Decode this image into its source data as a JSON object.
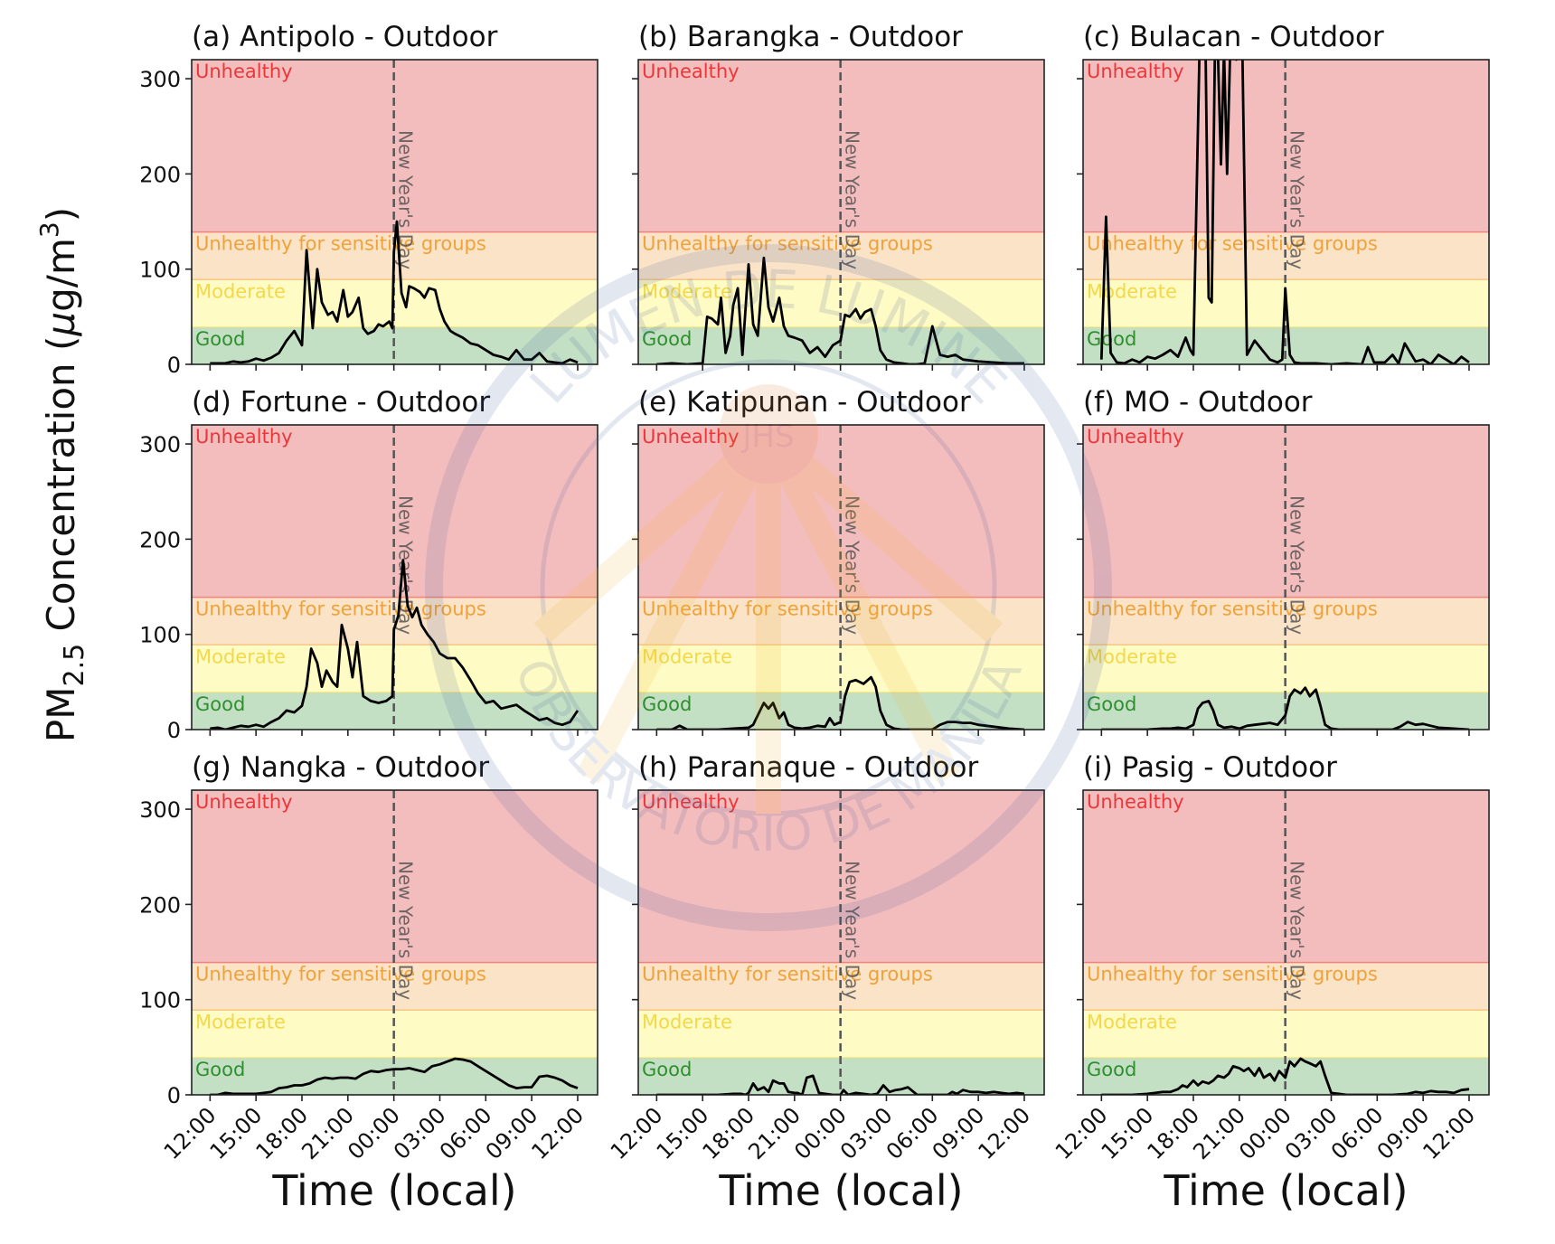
{
  "watermark": {
    "text_top": "LUMEN DE LUMINE",
    "text_bottom": "OBSERVATORIO DE MANILA",
    "monogram": "JHS"
  },
  "colors": {
    "unhealthy_band": "#f4bdbd",
    "usg_band": "#fae3c7",
    "moderate_band": "#fefbc4",
    "good_band": "#c4e0c4",
    "unhealthy_text": "#e8383b",
    "usg_text": "#f0a23a",
    "moderate_text": "#f3d84a",
    "good_text": "#2f8f2f",
    "line": "#000000",
    "nyd_line": "#555555"
  },
  "chart_data": {
    "type": "line",
    "ylabel_main": "PM",
    "ylabel_sub": "2.5",
    "ylabel_rest": " Concentration (",
    "ylabel_mu": "μ",
    "ylabel_unit": "g/m",
    "ylabel_sup": "3",
    "ylabel_close": ")",
    "xlabel": "Time (local)",
    "x_hours_range": [
      -1.2,
      25.3
    ],
    "ylim": [
      0,
      320
    ],
    "yticks": [
      0,
      100,
      200,
      300
    ],
    "ytick_labels": [
      "0",
      "100",
      "200",
      "300"
    ],
    "xticks_hours": [
      0,
      3,
      6,
      9,
      12,
      15,
      18,
      21,
      24
    ],
    "xtick_labels": [
      "12:00",
      "15:00",
      "18:00",
      "21:00",
      "00:00",
      "03:00",
      "06:00",
      "09:00",
      "12:00"
    ],
    "event": {
      "hour": 12,
      "label": "New Year's Day"
    },
    "bands": [
      {
        "name": "Good",
        "from": 0,
        "to": 39
      },
      {
        "name": "Moderate",
        "from": 39,
        "to": 89
      },
      {
        "name": "Unhealthy for sensitive groups",
        "from": 89,
        "to": 139
      },
      {
        "name": "Unhealthy",
        "from": 139,
        "to": 320
      }
    ],
    "panels": [
      {
        "title": "(a) Antipolo - Outdoor",
        "x": [
          0,
          0.5,
          1,
          1.5,
          2,
          2.5,
          3,
          3.5,
          4,
          4.5,
          5,
          5.5,
          6,
          6.3,
          6.7,
          7,
          7.3,
          7.7,
          8,
          8.3,
          8.7,
          9,
          9.3,
          9.7,
          10,
          10.3,
          10.7,
          11,
          11.3,
          11.7,
          11.9,
          12,
          12.2,
          12.5,
          12.8,
          13,
          13.3,
          13.7,
          14,
          14.3,
          14.7,
          15,
          15.3,
          15.7,
          16,
          16.5,
          17,
          17.5,
          18,
          18.5,
          19,
          19.5,
          20,
          20.5,
          21,
          21.5,
          22,
          22.5,
          23,
          23.5,
          24
        ],
        "y": [
          1,
          1,
          1,
          3,
          2,
          3,
          6,
          4,
          7,
          12,
          25,
          35,
          20,
          120,
          38,
          100,
          65,
          52,
          55,
          45,
          78,
          50,
          55,
          70,
          38,
          32,
          35,
          42,
          40,
          45,
          38,
          118,
          150,
          75,
          60,
          82,
          80,
          76,
          70,
          80,
          78,
          58,
          45,
          35,
          32,
          28,
          22,
          20,
          15,
          10,
          8,
          5,
          15,
          5,
          5,
          12,
          3,
          2,
          1,
          5,
          2
        ]
      },
      {
        "title": "(b) Barangka - Outdoor",
        "x": [
          0,
          1,
          2,
          3,
          3.3,
          3.6,
          4,
          4.2,
          4.5,
          4.8,
          5,
          5.3,
          5.6,
          6,
          6.3,
          6.6,
          7,
          7.3,
          7.6,
          8,
          8.3,
          8.6,
          9,
          9.5,
          10,
          10.5,
          11,
          11.5,
          12,
          12.3,
          12.6,
          13,
          13.3,
          13.6,
          14,
          14.3,
          14.6,
          15,
          15.5,
          16,
          16.5,
          17,
          17.5,
          18,
          18.5,
          19,
          19.5,
          20,
          21,
          22,
          23,
          24
        ],
        "y": [
          0,
          1,
          0,
          1,
          50,
          48,
          42,
          70,
          12,
          30,
          62,
          80,
          10,
          105,
          42,
          30,
          112,
          60,
          45,
          70,
          40,
          30,
          28,
          25,
          12,
          18,
          8,
          20,
          25,
          52,
          50,
          58,
          48,
          55,
          58,
          40,
          15,
          5,
          2,
          1,
          0,
          0,
          1,
          40,
          10,
          8,
          10,
          5,
          3,
          2,
          1,
          1
        ]
      },
      {
        "title": "(c) Bulacan - Outdoor",
        "x": [
          0,
          0.3,
          0.6,
          1,
          1.5,
          2,
          2.5,
          3,
          3.5,
          4,
          4.5,
          5,
          5.5,
          5.8,
          6,
          6.4,
          6.8,
          7,
          7.2,
          7.4,
          7.6,
          7.8,
          8,
          8.2,
          8.4,
          8.6,
          8.8,
          9,
          9.2,
          9.5,
          10,
          10.5,
          11,
          11.5,
          11.8,
          12,
          12.3,
          12.6,
          13,
          14,
          15,
          16,
          17,
          17.4,
          17.8,
          18.5,
          19,
          19.4,
          19.8,
          20.5,
          21,
          21.5,
          22,
          22.5,
          23,
          23.5,
          24
        ],
        "y": [
          5,
          155,
          12,
          2,
          1,
          5,
          2,
          8,
          6,
          10,
          15,
          8,
          28,
          15,
          10,
          330,
          330,
          70,
          65,
          320,
          330,
          210,
          330,
          200,
          330,
          330,
          320,
          330,
          330,
          10,
          25,
          15,
          5,
          2,
          5,
          80,
          10,
          2,
          1,
          1,
          0,
          1,
          0,
          18,
          2,
          2,
          10,
          1,
          22,
          3,
          5,
          0,
          10,
          5,
          0,
          8,
          2
        ]
      },
      {
        "title": "(d) Fortune - Outdoor",
        "x": [
          0,
          0.5,
          1,
          1.5,
          2,
          2.5,
          3,
          3.5,
          4,
          4.5,
          5,
          5.5,
          6,
          6.3,
          6.6,
          7,
          7.3,
          7.6,
          8,
          8.3,
          8.6,
          9,
          9.3,
          9.6,
          10,
          10.5,
          11,
          11.5,
          11.9,
          12,
          12.3,
          12.6,
          12.9,
          13.2,
          13.5,
          13.8,
          14.2,
          14.6,
          15,
          15.5,
          16,
          16.5,
          17,
          17.5,
          18,
          18.5,
          19,
          19.5,
          20,
          20.5,
          21,
          21.5,
          22,
          22.5,
          23,
          23.5,
          24
        ],
        "y": [
          1,
          2,
          0,
          2,
          4,
          3,
          5,
          3,
          8,
          12,
          20,
          18,
          25,
          45,
          85,
          70,
          45,
          62,
          50,
          45,
          110,
          85,
          55,
          92,
          35,
          30,
          28,
          30,
          35,
          105,
          120,
          178,
          130,
          118,
          128,
          110,
          100,
          92,
          80,
          75,
          75,
          65,
          52,
          38,
          28,
          30,
          22,
          24,
          26,
          20,
          15,
          10,
          12,
          7,
          5,
          8,
          20
        ]
      },
      {
        "title": "(e) Katipunan - Outdoor",
        "x": [
          0,
          0.5,
          1,
          1.5,
          2,
          2.5,
          3,
          4,
          5,
          6,
          6.3,
          6.6,
          7,
          7.3,
          7.6,
          8,
          8.3,
          8.6,
          9,
          9.5,
          10,
          10.5,
          11,
          11.3,
          11.6,
          12,
          12.3,
          12.6,
          13,
          13.5,
          14,
          14.3,
          14.6,
          15,
          15.5,
          16,
          16.5,
          17,
          17.5,
          18,
          18.5,
          19,
          19.5,
          20,
          20.5,
          21,
          22,
          23,
          24
        ],
        "y": [
          0,
          0,
          0,
          4,
          0,
          0,
          0,
          0,
          1,
          2,
          5,
          15,
          28,
          22,
          28,
          12,
          18,
          5,
          2,
          1,
          2,
          4,
          3,
          12,
          5,
          8,
          35,
          50,
          52,
          48,
          55,
          45,
          20,
          5,
          1,
          0,
          0,
          0,
          0,
          0,
          5,
          8,
          8,
          7,
          7,
          5,
          3,
          1,
          0
        ]
      },
      {
        "title": "(f) MO - Outdoor",
        "x": [
          0,
          1,
          2,
          3,
          4,
          4.5,
          5,
          5.5,
          6,
          6.3,
          6.6,
          7,
          7.3,
          7.6,
          8,
          8.5,
          9,
          9.5,
          10,
          10.5,
          11,
          11.5,
          12,
          12.3,
          12.6,
          13,
          13.3,
          13.6,
          14,
          14.3,
          14.6,
          15,
          15.5,
          16,
          17,
          18,
          19,
          19.5,
          20,
          20.5,
          21,
          21.5,
          22,
          23,
          24
        ],
        "y": [
          0,
          0,
          0,
          0,
          1,
          1,
          2,
          1,
          5,
          22,
          28,
          30,
          20,
          5,
          2,
          3,
          1,
          4,
          5,
          6,
          7,
          5,
          15,
          35,
          42,
          38,
          44,
          35,
          42,
          25,
          5,
          1,
          0,
          0,
          0,
          0,
          0,
          3,
          8,
          5,
          6,
          4,
          2,
          1,
          0
        ]
      },
      {
        "title": "(g) Nangka - Outdoor",
        "x": [
          0,
          0.5,
          1,
          1.5,
          2,
          2.5,
          3,
          3.5,
          4,
          4.5,
          5,
          5.5,
          6,
          6.5,
          7,
          7.5,
          8,
          8.5,
          9,
          9.5,
          10,
          10.5,
          11,
          11.5,
          12,
          12.5,
          13,
          13.5,
          14,
          14.5,
          15,
          15.5,
          16,
          16.5,
          17,
          17.5,
          18,
          18.5,
          19,
          19.5,
          20,
          20.5,
          21,
          21.5,
          22,
          22.5,
          23,
          23.5,
          24
        ],
        "y": [
          0,
          0,
          2,
          1,
          1,
          1,
          1,
          2,
          3,
          7,
          8,
          10,
          10,
          12,
          16,
          18,
          17,
          18,
          18,
          17,
          22,
          25,
          24,
          26,
          27,
          27,
          28,
          26,
          24,
          30,
          32,
          35,
          38,
          37,
          35,
          30,
          25,
          20,
          15,
          10,
          7,
          8,
          8,
          19,
          20,
          18,
          15,
          10,
          7
        ]
      },
      {
        "title": "(h) Paranaque - Outdoor",
        "x": [
          0,
          1,
          2,
          3,
          4,
          5,
          5.5,
          5.8,
          6,
          6.3,
          6.6,
          7,
          7.3,
          7.6,
          8,
          8.3,
          8.6,
          9,
          9.2,
          9.5,
          9.8,
          10.2,
          10.6,
          11,
          11.5,
          12,
          12.2,
          12.5,
          13,
          13.5,
          14,
          14.4,
          14.8,
          15.2,
          15.6,
          16,
          16.4,
          17,
          18,
          19,
          19.3,
          19.6,
          20,
          20.5,
          21,
          21.5,
          22,
          22.5,
          23,
          23.5,
          24
        ],
        "y": [
          0,
          0,
          0,
          0,
          0,
          1,
          1,
          0,
          2,
          12,
          5,
          8,
          3,
          15,
          12,
          12,
          3,
          2,
          2,
          0,
          18,
          20,
          2,
          1,
          0,
          0,
          5,
          0,
          2,
          1,
          0,
          1,
          10,
          3,
          5,
          6,
          8,
          0,
          0,
          0,
          3,
          1,
          5,
          3,
          3,
          2,
          3,
          2,
          1,
          2,
          1
        ]
      },
      {
        "title": "(i) Pasig - Outdoor",
        "x": [
          0,
          1,
          2,
          3,
          3.5,
          4,
          4.5,
          5,
          5.3,
          5.6,
          6,
          6.3,
          6.6,
          7,
          7.3,
          7.6,
          8,
          8.3,
          8.6,
          9,
          9.3,
          9.6,
          10,
          10.3,
          10.6,
          11,
          11.3,
          11.6,
          12,
          12.3,
          12.6,
          13,
          13.3,
          13.6,
          14,
          14.3,
          14.6,
          15,
          15.5,
          16,
          17,
          18,
          19,
          20,
          20.5,
          21,
          21.5,
          22,
          22.5,
          23,
          23.5,
          24
        ],
        "y": [
          0,
          0,
          0,
          1,
          2,
          3,
          3,
          6,
          10,
          8,
          15,
          10,
          14,
          12,
          15,
          20,
          18,
          22,
          30,
          28,
          25,
          28,
          20,
          28,
          18,
          22,
          15,
          25,
          18,
          35,
          30,
          38,
          35,
          33,
          30,
          35,
          20,
          2,
          1,
          0,
          0,
          0,
          0,
          1,
          3,
          2,
          4,
          3,
          3,
          2,
          5,
          6
        ]
      }
    ]
  }
}
